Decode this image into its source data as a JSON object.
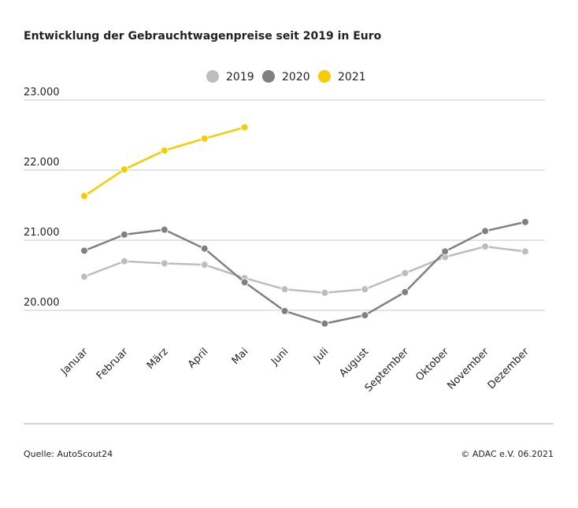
{
  "chart_data": {
    "type": "line",
    "title": "Entwicklung der Gebrauchtwagenpreise seit 2019 in Euro",
    "categories": [
      "Januar",
      "Februar",
      "März",
      "April",
      "Mai",
      "Juni",
      "Juli",
      "August",
      "September",
      "Oktober",
      "November",
      "Dezember"
    ],
    "series": [
      {
        "name": "2019",
        "color": "#bdbdbd",
        "values": [
          20480,
          20700,
          20670,
          20650,
          20460,
          20300,
          20250,
          20300,
          20530,
          20760,
          20910,
          20840
        ]
      },
      {
        "name": "2020",
        "color": "#808080",
        "values": [
          20850,
          21080,
          21150,
          20880,
          20400,
          19990,
          19810,
          19930,
          20260,
          20840,
          21130,
          21260
        ]
      },
      {
        "name": "2021",
        "color": "#f5cc00",
        "values": [
          21630,
          22010,
          22280,
          22450,
          22610,
          null,
          null,
          null,
          null,
          null,
          null,
          null
        ]
      }
    ],
    "ylim": [
      19500,
      23000
    ],
    "yticks": [
      {
        "value": 20000,
        "label": "20.000"
      },
      {
        "value": 21000,
        "label": "21.000"
      },
      {
        "value": 22000,
        "label": "22.000"
      },
      {
        "value": 23000,
        "label": "23.000"
      }
    ],
    "grid": true,
    "legend": "top",
    "source": "Quelle: AutoScout24",
    "copyright": "© ADAC e.V. 06.2021"
  }
}
